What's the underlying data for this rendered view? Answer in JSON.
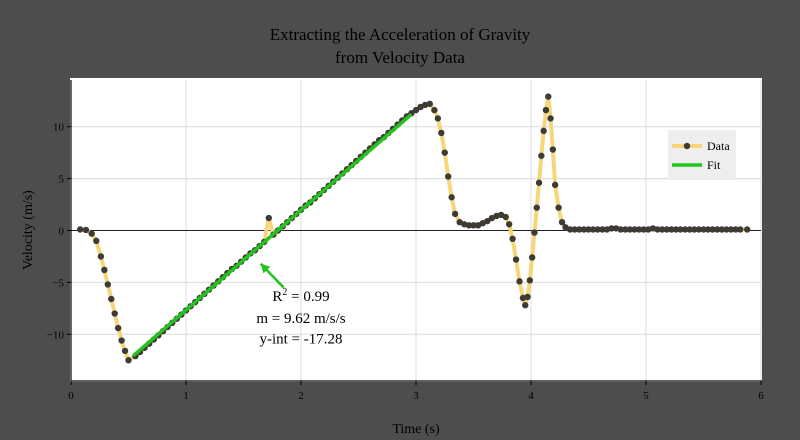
{
  "chart_data": {
    "type": "line",
    "title": [
      "Extracting the Acceleration of Gravity",
      "from Velocity Data"
    ],
    "xlabel": "Time (s)",
    "ylabel": "Velocity (m/s)",
    "xlim": [
      0,
      6
    ],
    "ylim": [
      -14.5,
      14.5
    ],
    "xticks": [
      0,
      1,
      2,
      3,
      4,
      5,
      6
    ],
    "yticks": [
      -10,
      -5,
      0,
      5,
      10
    ],
    "ytick_labels": [
      "−10",
      "−5",
      "0",
      "5",
      "10"
    ],
    "grid": true,
    "legend_position": "right",
    "series": [
      {
        "name": "Data",
        "line_color": "#f7d67a",
        "point_color": "#3e3b35",
        "points": [
          [
            0.08,
            0.1
          ],
          [
            0.13,
            0.05
          ],
          [
            0.18,
            -0.3
          ],
          [
            0.22,
            -1.0
          ],
          [
            0.26,
            -2.5
          ],
          [
            0.29,
            -3.8
          ],
          [
            0.32,
            -5.2
          ],
          [
            0.35,
            -6.6
          ],
          [
            0.38,
            -8.0
          ],
          [
            0.41,
            -9.4
          ],
          [
            0.44,
            -10.6
          ],
          [
            0.47,
            -11.6
          ],
          [
            0.5,
            -12.5
          ],
          [
            0.56,
            -12.1
          ],
          [
            0.6,
            -11.7
          ],
          [
            0.64,
            -11.3
          ],
          [
            0.68,
            -10.9
          ],
          [
            0.72,
            -10.5
          ],
          [
            0.76,
            -10.1
          ],
          [
            0.8,
            -9.7
          ],
          [
            0.84,
            -9.3
          ],
          [
            0.88,
            -8.9
          ],
          [
            0.92,
            -8.5
          ],
          [
            0.96,
            -8.1
          ],
          [
            1.0,
            -7.7
          ],
          [
            1.04,
            -7.3
          ],
          [
            1.08,
            -6.9
          ],
          [
            1.12,
            -6.5
          ],
          [
            1.16,
            -6.1
          ],
          [
            1.2,
            -5.7
          ],
          [
            1.24,
            -5.3
          ],
          [
            1.28,
            -4.9
          ],
          [
            1.32,
            -4.5
          ],
          [
            1.36,
            -4.1
          ],
          [
            1.4,
            -3.7
          ],
          [
            1.44,
            -3.4
          ],
          [
            1.48,
            -3.0
          ],
          [
            1.52,
            -2.6
          ],
          [
            1.56,
            -2.2
          ],
          [
            1.6,
            -1.9
          ],
          [
            1.64,
            -1.5
          ],
          [
            1.68,
            -1.1
          ],
          [
            1.72,
            1.2
          ],
          [
            1.76,
            -0.4
          ],
          [
            1.8,
            0.0
          ],
          [
            1.84,
            0.4
          ],
          [
            1.88,
            0.8
          ],
          [
            1.92,
            1.2
          ],
          [
            1.96,
            1.6
          ],
          [
            2.0,
            2.0
          ],
          [
            2.04,
            2.4
          ],
          [
            2.08,
            2.7
          ],
          [
            2.12,
            3.1
          ],
          [
            2.16,
            3.5
          ],
          [
            2.2,
            3.9
          ],
          [
            2.24,
            4.3
          ],
          [
            2.28,
            4.7
          ],
          [
            2.32,
            5.1
          ],
          [
            2.36,
            5.5
          ],
          [
            2.4,
            5.9
          ],
          [
            2.44,
            6.3
          ],
          [
            2.48,
            6.7
          ],
          [
            2.52,
            7.1
          ],
          [
            2.56,
            7.5
          ],
          [
            2.6,
            7.9
          ],
          [
            2.64,
            8.3
          ],
          [
            2.68,
            8.7
          ],
          [
            2.72,
            9.0
          ],
          [
            2.76,
            9.4
          ],
          [
            2.8,
            9.8
          ],
          [
            2.84,
            10.2
          ],
          [
            2.88,
            10.6
          ],
          [
            2.92,
            11.0
          ],
          [
            2.96,
            11.3
          ],
          [
            3.0,
            11.6
          ],
          [
            3.04,
            11.9
          ],
          [
            3.08,
            12.1
          ],
          [
            3.12,
            12.2
          ],
          [
            3.16,
            11.6
          ],
          [
            3.19,
            10.8
          ],
          [
            3.22,
            9.4
          ],
          [
            3.25,
            7.5
          ],
          [
            3.28,
            5.2
          ],
          [
            3.31,
            3.2
          ],
          [
            3.34,
            1.6
          ],
          [
            3.38,
            0.8
          ],
          [
            3.42,
            0.6
          ],
          [
            3.46,
            0.5
          ],
          [
            3.5,
            0.5
          ],
          [
            3.54,
            0.5
          ],
          [
            3.58,
            0.7
          ],
          [
            3.62,
            0.9
          ],
          [
            3.66,
            1.2
          ],
          [
            3.7,
            1.4
          ],
          [
            3.74,
            1.5
          ],
          [
            3.78,
            1.3
          ],
          [
            3.81,
            0.6
          ],
          [
            3.84,
            -0.8
          ],
          [
            3.87,
            -2.8
          ],
          [
            3.9,
            -4.9
          ],
          [
            3.93,
            -6.5
          ],
          [
            3.95,
            -7.2
          ],
          [
            3.97,
            -6.4
          ],
          [
            3.99,
            -4.8
          ],
          [
            4.01,
            -2.6
          ],
          [
            4.03,
            -0.2
          ],
          [
            4.05,
            2.2
          ],
          [
            4.07,
            4.6
          ],
          [
            4.09,
            7.2
          ],
          [
            4.11,
            9.6
          ],
          [
            4.13,
            11.6
          ],
          [
            4.15,
            12.9
          ],
          [
            4.17,
            10.8
          ],
          [
            4.19,
            7.8
          ],
          [
            4.21,
            4.4
          ],
          [
            4.24,
            2.2
          ],
          [
            4.27,
            0.8
          ],
          [
            4.3,
            0.3
          ],
          [
            4.34,
            0.1
          ],
          [
            4.38,
            0.1
          ],
          [
            4.42,
            0.1
          ],
          [
            4.46,
            0.1
          ],
          [
            4.5,
            0.1
          ],
          [
            4.54,
            0.1
          ],
          [
            4.58,
            0.1
          ],
          [
            4.62,
            0.1
          ],
          [
            4.66,
            0.1
          ],
          [
            4.7,
            0.2
          ],
          [
            4.74,
            0.2
          ],
          [
            4.78,
            0.1
          ],
          [
            4.82,
            0.1
          ],
          [
            4.86,
            0.1
          ],
          [
            4.9,
            0.1
          ],
          [
            4.94,
            0.1
          ],
          [
            4.98,
            0.1
          ],
          [
            5.02,
            0.1
          ],
          [
            5.06,
            0.2
          ],
          [
            5.1,
            0.1
          ],
          [
            5.14,
            0.1
          ],
          [
            5.18,
            0.1
          ],
          [
            5.22,
            0.1
          ],
          [
            5.26,
            0.1
          ],
          [
            5.3,
            0.1
          ],
          [
            5.34,
            0.1
          ],
          [
            5.38,
            0.1
          ],
          [
            5.42,
            0.1
          ],
          [
            5.46,
            0.1
          ],
          [
            5.5,
            0.1
          ],
          [
            5.54,
            0.1
          ],
          [
            5.58,
            0.1
          ],
          [
            5.62,
            0.1
          ],
          [
            5.66,
            0.1
          ],
          [
            5.7,
            0.1
          ],
          [
            5.74,
            0.1
          ],
          [
            5.78,
            0.1
          ],
          [
            5.82,
            0.1
          ],
          [
            5.88,
            0.1
          ]
        ]
      },
      {
        "name": "Fit",
        "color": "#22c31e",
        "slope": 9.62,
        "intercept": -17.28,
        "x_range": [
          0.55,
          2.95
        ]
      }
    ],
    "annotation": {
      "lines": [
        "R² = 0.99",
        "m = 9.62 m/s/s",
        "y-int = -17.28"
      ],
      "arrow_from": [
        1.85,
        -5.5
      ],
      "arrow_to": [
        1.65,
        -3.2
      ],
      "text_x": 2.0,
      "text_y": [
        -6.8,
        -8.9,
        -10.9
      ],
      "color": "#22c31e"
    }
  }
}
